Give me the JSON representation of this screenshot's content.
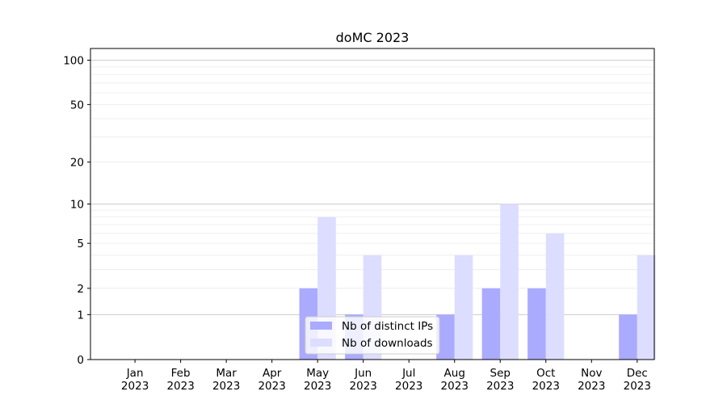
{
  "chart_data": {
    "type": "bar",
    "title": "doMC 2023",
    "xlabel": "",
    "ylabel": "",
    "categories": [
      [
        "Jan",
        "2023"
      ],
      [
        "Feb",
        "2023"
      ],
      [
        "Mar",
        "2023"
      ],
      [
        "Apr",
        "2023"
      ],
      [
        "May",
        "2023"
      ],
      [
        "Jun",
        "2023"
      ],
      [
        "Jul",
        "2023"
      ],
      [
        "Aug",
        "2023"
      ],
      [
        "Sep",
        "2023"
      ],
      [
        "Oct",
        "2023"
      ],
      [
        "Nov",
        "2023"
      ],
      [
        "Dec",
        "2023"
      ]
    ],
    "series": [
      {
        "name": "Nb of distinct IPs",
        "color": "#aaaaff",
        "values": [
          0,
          0,
          0,
          0,
          2,
          1,
          0,
          1,
          2,
          2,
          0,
          1
        ]
      },
      {
        "name": "Nb of downloads",
        "color": "#ddddff",
        "values": [
          0,
          0,
          0,
          0,
          8,
          4,
          0,
          4,
          10,
          6,
          0,
          4
        ]
      }
    ],
    "y_scale": "log(1+y)",
    "ylim": [
      0,
      120
    ],
    "y_ticks": [
      0,
      1,
      2,
      5,
      10,
      20,
      50,
      100
    ],
    "grid": true,
    "legend_position": "lower center"
  }
}
